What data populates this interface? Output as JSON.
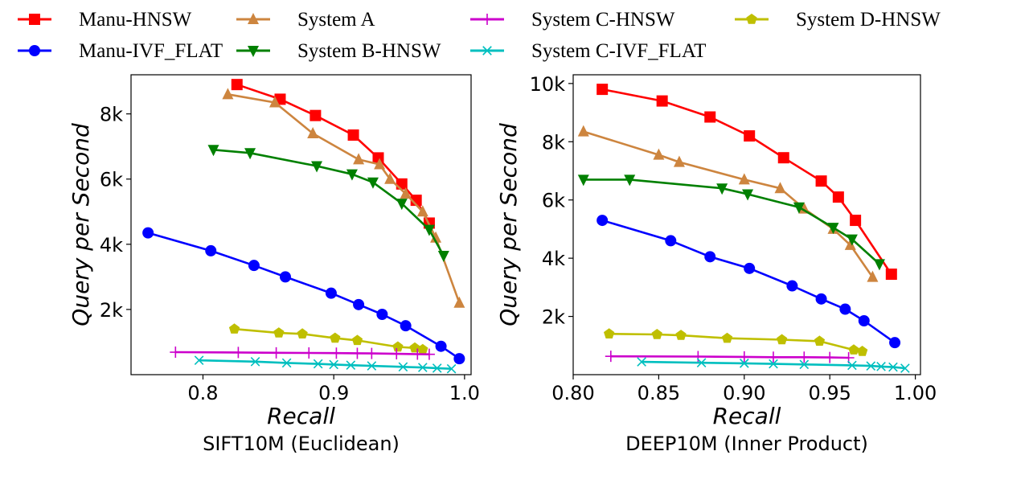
{
  "chart_data": {
    "type": "line",
    "legend": {
      "placement": "top",
      "entries": [
        {
          "name": "Manu-HNSW",
          "color": "#ff0000",
          "marker": "square"
        },
        {
          "name": "Manu-IVF_FLAT",
          "color": "#0000ff",
          "marker": "circle"
        },
        {
          "name": "System A",
          "color": "#cd853f",
          "marker": "triangle-up"
        },
        {
          "name": "System B-HNSW",
          "color": "#008000",
          "marker": "triangle-down"
        },
        {
          "name": "System C-HNSW",
          "color": "#cc00cc",
          "marker": "plus"
        },
        {
          "name": "System C-IVF_FLAT",
          "color": "#00bfbf",
          "marker": "x"
        },
        {
          "name": "System D-HNSW",
          "color": "#bfbf00",
          "marker": "pentagon"
        }
      ]
    },
    "charts": [
      {
        "title": "SIFT10M (Euclidean)",
        "xlabel": "Recall",
        "ylabel": "Query per Second",
        "xlim": [
          0.745,
          1.005
        ],
        "ylim": [
          0,
          9200
        ],
        "xticks": [
          {
            "v": 0.8,
            "label": "0.8"
          },
          {
            "v": 0.9,
            "label": "0.9"
          },
          {
            "v": 1.0,
            "label": "1.0"
          }
        ],
        "yticks": [
          {
            "v": 2000,
            "label": "2k"
          },
          {
            "v": 4000,
            "label": "4k"
          },
          {
            "v": 6000,
            "label": "6k"
          },
          {
            "v": 8000,
            "label": "8k"
          }
        ],
        "series": [
          {
            "name": "Manu-HNSW",
            "x": [
              0.826,
              0.859,
              0.886,
              0.915,
              0.934,
              0.952,
              0.963,
              0.973
            ],
            "y": [
              8900,
              8450,
              7950,
              7350,
              6650,
              5850,
              5350,
              4650
            ]
          },
          {
            "name": "System A",
            "x": [
              0.819,
              0.855,
              0.884,
              0.919,
              0.935,
              0.943,
              0.955,
              0.968,
              0.978,
              0.996
            ],
            "y": [
              8600,
              8350,
              7400,
              6600,
              6450,
              6000,
              5550,
              5000,
              4200,
              2200
            ]
          },
          {
            "name": "System B-HNSW",
            "x": [
              0.808,
              0.836,
              0.887,
              0.914,
              0.93,
              0.952,
              0.973,
              0.984
            ],
            "y": [
              6900,
              6800,
              6400,
              6150,
              5900,
              5250,
              4450,
              3650
            ]
          },
          {
            "name": "Manu-IVF_FLAT",
            "x": [
              0.758,
              0.806,
              0.839,
              0.863,
              0.898,
              0.919,
              0.937,
              0.955,
              0.982,
              0.996
            ],
            "y": [
              4350,
              3800,
              3350,
              3000,
              2500,
              2150,
              1850,
              1500,
              870,
              490
            ]
          },
          {
            "name": "System D-HNSW",
            "x": [
              0.824,
              0.858,
              0.876,
              0.901,
              0.918,
              0.949,
              0.962,
              0.968
            ],
            "y": [
              1400,
              1280,
              1250,
              1120,
              1050,
              850,
              820,
              770
            ]
          },
          {
            "name": "System C-HNSW",
            "x": [
              0.779,
              0.827,
              0.856,
              0.881,
              0.902,
              0.918,
              0.929,
              0.948,
              0.964,
              0.973
            ],
            "y": [
              690,
              680,
              670,
              665,
              660,
              655,
              650,
              640,
              630,
              625
            ]
          },
          {
            "name": "System C-IVF_FLAT",
            "x": [
              0.797,
              0.84,
              0.864,
              0.888,
              0.9,
              0.913,
              0.929,
              0.953,
              0.968,
              0.979,
              0.99
            ],
            "y": [
              440,
              400,
              360,
              330,
              310,
              290,
              270,
              240,
              220,
              200,
              180
            ]
          }
        ]
      },
      {
        "title": "DEEP10M (Inner Product)",
        "xlabel": "Recall",
        "ylabel": "Query per Second",
        "xlim": [
          0.8,
          1.003
        ],
        "ylim": [
          0,
          10300
        ],
        "xticks": [
          {
            "v": 0.8,
            "label": "0.80"
          },
          {
            "v": 0.85,
            "label": "0.85"
          },
          {
            "v": 0.9,
            "label": "0.90"
          },
          {
            "v": 0.95,
            "label": "0.95"
          },
          {
            "v": 1.0,
            "label": "1.00"
          }
        ],
        "yticks": [
          {
            "v": 2000,
            "label": "2k"
          },
          {
            "v": 4000,
            "label": "4k"
          },
          {
            "v": 6000,
            "label": "6k"
          },
          {
            "v": 8000,
            "label": "8k"
          },
          {
            "v": 10000,
            "label": "10k"
          }
        ],
        "series": [
          {
            "name": "Manu-HNSW",
            "x": [
              0.817,
              0.852,
              0.88,
              0.903,
              0.923,
              0.945,
              0.955,
              0.965,
              0.986
            ],
            "y": [
              9800,
              9400,
              8850,
              8200,
              7450,
              6650,
              6100,
              5300,
              3450
            ]
          },
          {
            "name": "System A",
            "x": [
              0.806,
              0.85,
              0.862,
              0.9,
              0.921,
              0.935,
              0.952,
              0.962,
              0.975
            ],
            "y": [
              8350,
              7550,
              7300,
              6700,
              6400,
              5700,
              5000,
              4450,
              3350
            ]
          },
          {
            "name": "System B-HNSW",
            "x": [
              0.806,
              0.833,
              0.887,
              0.902,
              0.932,
              0.952,
              0.963,
              0.979
            ],
            "y": [
              6700,
              6700,
              6400,
              6200,
              5750,
              5050,
              4650,
              3800
            ]
          },
          {
            "name": "Manu-IVF_FLAT",
            "x": [
              0.817,
              0.857,
              0.88,
              0.903,
              0.928,
              0.945,
              0.959,
              0.97,
              0.988
            ],
            "y": [
              5300,
              4600,
              4050,
              3650,
              3050,
              2600,
              2250,
              1850,
              1100
            ]
          },
          {
            "name": "System D-HNSW",
            "x": [
              0.821,
              0.849,
              0.863,
              0.89,
              0.922,
              0.944,
              0.964,
              0.969
            ],
            "y": [
              1400,
              1380,
              1350,
              1250,
              1200,
              1150,
              850,
              800
            ]
          },
          {
            "name": "System C-HNSW",
            "x": [
              0.822,
              0.873,
              0.9,
              0.917,
              0.935,
              0.95,
              0.961
            ],
            "y": [
              630,
              620,
              610,
              600,
              600,
              590,
              580
            ]
          },
          {
            "name": "System C-IVF_FLAT",
            "x": [
              0.84,
              0.875,
              0.9,
              0.917,
              0.935,
              0.963,
              0.974,
              0.98,
              0.987,
              0.994
            ],
            "y": [
              440,
              410,
              390,
              370,
              350,
              320,
              300,
              280,
              260,
              220
            ]
          }
        ]
      }
    ]
  }
}
